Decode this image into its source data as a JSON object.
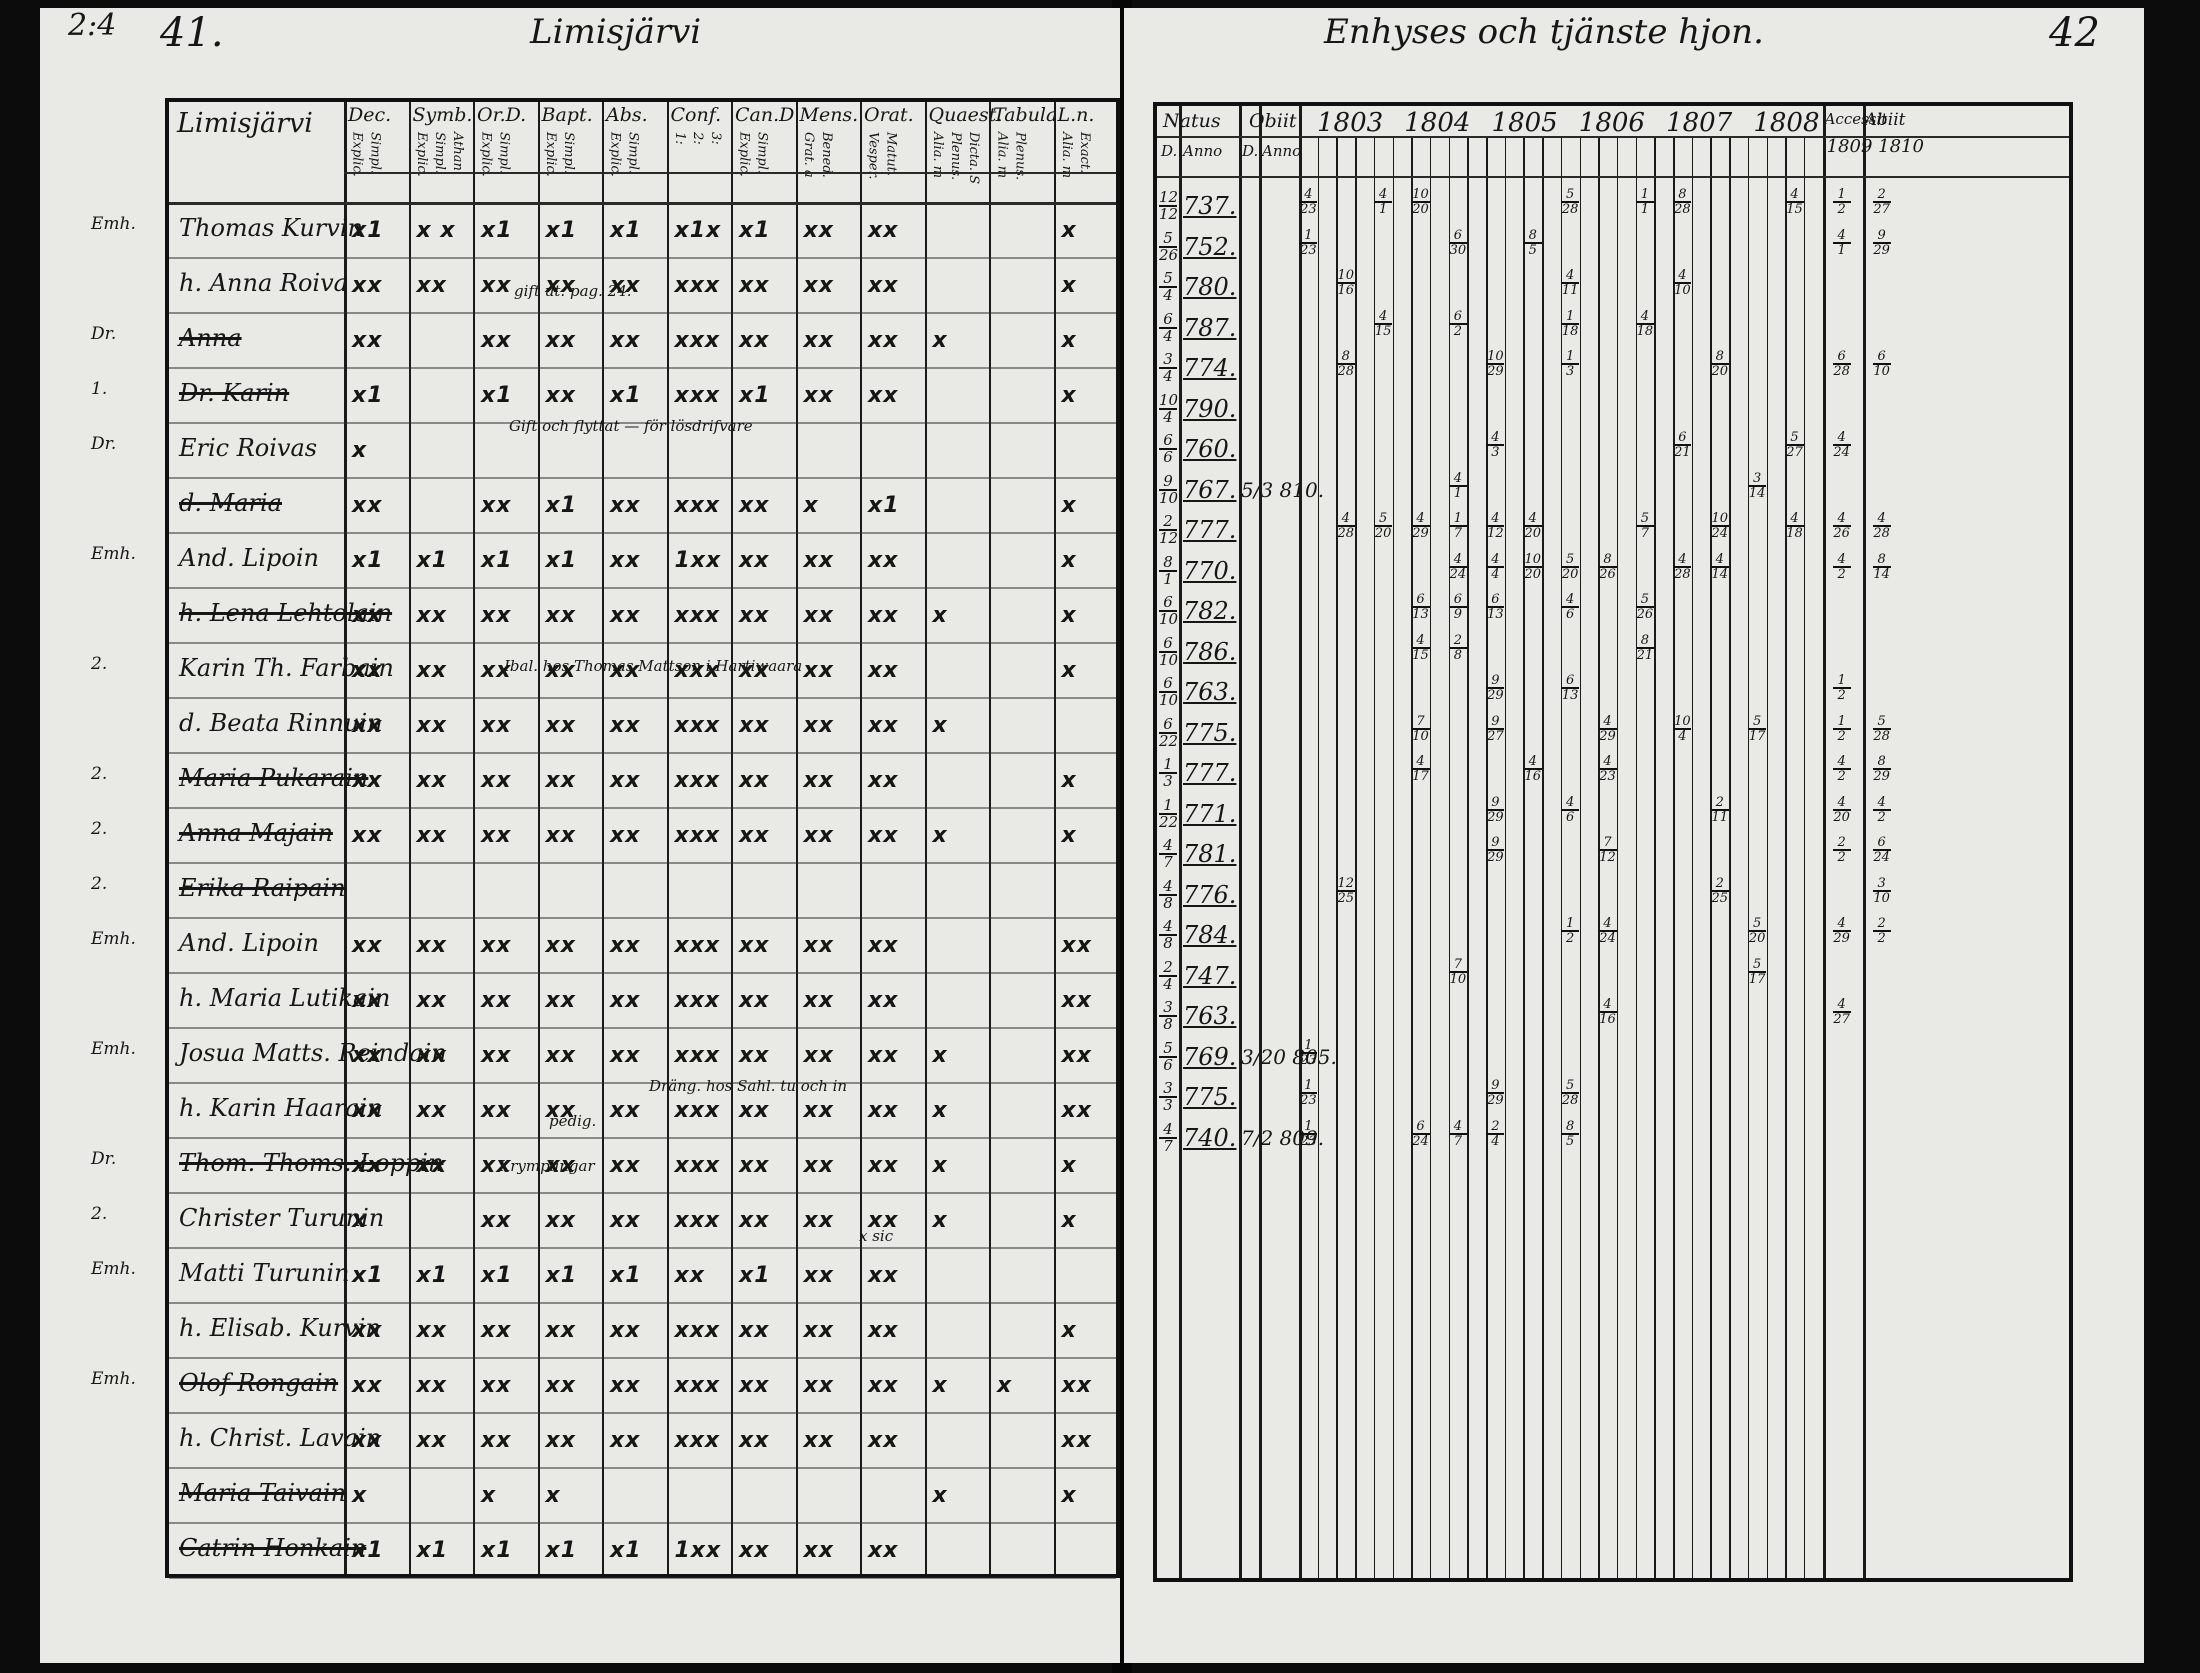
{
  "left_page": {
    "page_number": "41.",
    "corner_number": "2:4",
    "running_title": "Limisjärvi",
    "table_title": "Limisjärvi",
    "header_columns": [
      {
        "label": "Dec.",
        "sub": [
          "Explic.",
          "Simpl."
        ]
      },
      {
        "label": "Symb.",
        "sub": [
          "Explic.",
          "Simpl.",
          "Athan."
        ]
      },
      {
        "label": "Or.D.",
        "sub": [
          "Explic.",
          "Simpl."
        ]
      },
      {
        "label": "Bapt.",
        "sub": [
          "Explic.",
          "Simpl."
        ]
      },
      {
        "label": "Abs.",
        "sub": [
          "Explic.",
          "Simpl."
        ]
      },
      {
        "label": "Conf.",
        "sub": [
          "1:",
          "2:",
          "3:"
        ]
      },
      {
        "label": "Can.D",
        "sub": [
          "Explic.",
          "Simpl."
        ]
      },
      {
        "label": "Mens.",
        "sub": [
          "Grat. a",
          "Bened."
        ]
      },
      {
        "label": "Orat.",
        "sub": [
          "Vesper.",
          "Matut."
        ]
      },
      {
        "label": "Quaest.",
        "sub": [
          "Alia. m",
          "Plenus.",
          "Dicta. S"
        ]
      },
      {
        "label": "Tabula",
        "sub": [
          "Alia. m",
          "Plenus."
        ]
      },
      {
        "label": "L.n.",
        "sub": [
          "Alia. m",
          "Exact."
        ]
      }
    ],
    "rows": [
      {
        "margin": "Emh.",
        "name": "Thomas Kurvin",
        "struck": false,
        "marks": [
          "x1",
          "x x",
          "x1",
          "x1",
          "x1",
          "x1x",
          "x1",
          "xx",
          "xx",
          "",
          "",
          "x"
        ]
      },
      {
        "margin": "",
        "name": "h. Anna Roiva",
        "struck": false,
        "marks": [
          "xx",
          "xx",
          "xx",
          "xx",
          "xx",
          "xxx",
          "xx",
          "xx",
          "xx",
          "",
          "",
          "x"
        ]
      },
      {
        "margin": "Dr.",
        "name": "Anna",
        "struck": true,
        "marks": [
          "xx",
          "",
          "xx",
          "xx",
          "xx",
          "xxx",
          "xx",
          "xx",
          "xx",
          "x",
          "",
          "x"
        ]
      },
      {
        "margin": "1.",
        "name": "Dr. Karin",
        "struck": true,
        "marks": [
          "x1",
          "",
          "x1",
          "xx",
          "x1",
          "xxx",
          "x1",
          "xx",
          "xx",
          "",
          "",
          "x"
        ]
      },
      {
        "margin": "Dr.",
        "name": "Eric Roivas",
        "struck": false,
        "marks": [
          "x",
          "",
          "",
          "",
          "",
          "",
          "",
          "",
          "",
          "",
          "",
          ""
        ]
      },
      {
        "margin": "",
        "name": "d. Maria",
        "struck": true,
        "marks": [
          "xx",
          "",
          "xx",
          "x1",
          "xx",
          "xxx",
          "xx",
          "x",
          "x1",
          "",
          "",
          "x"
        ]
      },
      {
        "margin": "Emh.",
        "name": "And. Lipoin",
        "struck": false,
        "marks": [
          "x1",
          "x1",
          "x1",
          "x1",
          "xx",
          "1xx",
          "xx",
          "xx",
          "xx",
          "",
          "",
          "x"
        ]
      },
      {
        "margin": "",
        "name": "h. Lena Lehtolain",
        "struck": true,
        "marks": [
          "xx",
          "xx",
          "xx",
          "xx",
          "xx",
          "xxx",
          "xx",
          "xx",
          "xx",
          "x",
          "",
          "x"
        ]
      },
      {
        "margin": "2.",
        "name": "Karin Th. Farbain",
        "struck": false,
        "marks": [
          "xx",
          "xx",
          "xx",
          "xx",
          "xx",
          "xxx",
          "xx",
          "xx",
          "xx",
          "",
          "",
          "x"
        ]
      },
      {
        "margin": "",
        "name": "d. Beata Rinnuin",
        "struck": false,
        "marks": [
          "xx",
          "xx",
          "xx",
          "xx",
          "xx",
          "xxx",
          "xx",
          "xx",
          "xx",
          "x",
          "",
          ""
        ]
      },
      {
        "margin": "2.",
        "name": "Maria Pukarain",
        "struck": true,
        "marks": [
          "xx",
          "xx",
          "xx",
          "xx",
          "xx",
          "xxx",
          "xx",
          "xx",
          "xx",
          "",
          "",
          "x"
        ]
      },
      {
        "margin": "2.",
        "name": "Anna Majain",
        "struck": true,
        "marks": [
          "xx",
          "xx",
          "xx",
          "xx",
          "xx",
          "xxx",
          "xx",
          "xx",
          "xx",
          "x",
          "",
          "x"
        ]
      },
      {
        "margin": "2.",
        "name": "Erika Raipain",
        "struck": true,
        "marks": [
          "",
          "",
          "",
          "",
          "",
          "",
          "",
          "",
          "",
          "",
          "",
          ""
        ]
      },
      {
        "margin": "Emh.",
        "name": "And. Lipoin",
        "struck": false,
        "marks": [
          "xx",
          "xx",
          "xx",
          "xx",
          "xx",
          "xxx",
          "xx",
          "xx",
          "xx",
          "",
          "",
          "xx"
        ]
      },
      {
        "margin": "",
        "name": "h. Maria Lutikain",
        "struck": false,
        "marks": [
          "xx",
          "xx",
          "xx",
          "xx",
          "xx",
          "xxx",
          "xx",
          "xx",
          "xx",
          "",
          "",
          "xx"
        ]
      },
      {
        "margin": "Emh.",
        "name": "Josua Matts. Reindain",
        "struck": false,
        "marks": [
          "xx",
          "xx",
          "xx",
          "xx",
          "xx",
          "xxx",
          "xx",
          "xx",
          "xx",
          "x",
          "",
          "xx"
        ]
      },
      {
        "margin": "",
        "name": "h. Karin Haarain",
        "struck": false,
        "marks": [
          "xx",
          "xx",
          "xx",
          "xx",
          "xx",
          "xxx",
          "xx",
          "xx",
          "xx",
          "x",
          "",
          "xx"
        ]
      },
      {
        "margin": "Dr.",
        "name": "Thom. Thoms. Loppin",
        "struck": true,
        "marks": [
          "xx",
          "xx",
          "xx",
          "xx",
          "xx",
          "xxx",
          "xx",
          "xx",
          "xx",
          "x",
          "",
          "x"
        ]
      },
      {
        "margin": "2.",
        "name": "Christer Turunin",
        "struck": false,
        "marks": [
          "x",
          "",
          "xx",
          "xx",
          "xx",
          "xxx",
          "xx",
          "xx",
          "xx",
          "x",
          "",
          "x"
        ]
      },
      {
        "margin": "Emh.",
        "name": "Matti Turunin",
        "struck": false,
        "marks": [
          "x1",
          "x1",
          "x1",
          "x1",
          "x1",
          "xx",
          "x1",
          "xx",
          "xx",
          "",
          "",
          ""
        ]
      },
      {
        "margin": "",
        "name": "h. Elisab. Kurvin",
        "struck": false,
        "marks": [
          "xx",
          "xx",
          "xx",
          "xx",
          "xx",
          "xxx",
          "xx",
          "xx",
          "xx",
          "",
          "",
          "x"
        ]
      },
      {
        "margin": "Emh.",
        "name": "Olof Rongain",
        "struck": true,
        "marks": [
          "xx",
          "xx",
          "xx",
          "xx",
          "xx",
          "xxx",
          "xx",
          "xx",
          "xx",
          "x",
          "x",
          "xx"
        ]
      },
      {
        "margin": "",
        "name": "h. Christ. Lavain",
        "struck": false,
        "marks": [
          "xx",
          "xx",
          "xx",
          "xx",
          "xx",
          "xxx",
          "xx",
          "xx",
          "xx",
          "",
          "",
          "xx"
        ]
      },
      {
        "margin": "",
        "name": "Maria Taivain",
        "struck": true,
        "marks": [
          "x",
          "",
          "x",
          "x",
          "",
          "",
          "",
          "",
          "",
          "x",
          "",
          "x"
        ]
      },
      {
        "margin": "",
        "name": "Catrin Honkain",
        "struck": true,
        "marks": [
          "x1",
          "x1",
          "x1",
          "x1",
          "x1",
          "1xx",
          "xx",
          "xx",
          "xx",
          "",
          "",
          ""
        ]
      }
    ],
    "notes": [
      "gift ut. pag. 24.",
      "Gift och flyttat — för lösdrifvare",
      "Ibal. hos Thomas Mattson i Hartiwaara",
      "Dräng. hos Sahl. tu och in",
      "pedig.",
      "Krymplingar",
      "x sic"
    ]
  },
  "right_page": {
    "page_number": "42",
    "running_title": "Enhyses och tjänste hjon.",
    "header": {
      "natus": "Natus",
      "obiit": "Obiit",
      "d": "D.",
      "anno": "Anno",
      "years": [
        "1803",
        "1804",
        "1805",
        "1806",
        "1807",
        "1808"
      ],
      "accessit": "Accessit",
      "abiit": "Abiit",
      "year_note": "1809 1810"
    },
    "birth_rows": [
      {
        "day": "12/12",
        "year": "737.",
        "death": ""
      },
      {
        "day": "5/26",
        "year": "752.",
        "death": ""
      },
      {
        "day": "5/4",
        "year": "780.",
        "death": ""
      },
      {
        "day": "6/4",
        "year": "787.",
        "death": ""
      },
      {
        "day": "3/4",
        "year": "774.",
        "death": ""
      },
      {
        "day": "10/4",
        "year": "790.",
        "death": ""
      },
      {
        "day": "6/6",
        "year": "760.",
        "death": ""
      },
      {
        "day": "9/10",
        "year": "767.",
        "death": "5/3 810."
      },
      {
        "day": "2/12",
        "year": "777.",
        "death": ""
      },
      {
        "day": "8/1",
        "year": "770.",
        "death": ""
      },
      {
        "day": "6/10",
        "year": "782.",
        "death": ""
      },
      {
        "day": "6/10",
        "year": "786.",
        "death": ""
      },
      {
        "day": "6/10",
        "year": "763.",
        "death": ""
      },
      {
        "day": "6/22",
        "year": "775.",
        "death": ""
      },
      {
        "day": "1/3",
        "year": "777.",
        "death": ""
      },
      {
        "day": "1/22",
        "year": "771.",
        "death": ""
      },
      {
        "day": "4/7",
        "year": "781.",
        "death": ""
      },
      {
        "day": "4/8",
        "year": "776.",
        "death": ""
      },
      {
        "day": "4/8",
        "year": "784.",
        "death": ""
      },
      {
        "day": "2/4",
        "year": "747.",
        "death": ""
      },
      {
        "day": "3/8",
        "year": "763.",
        "death": ""
      },
      {
        "day": "5/6",
        "year": "769.",
        "death": "3/20 805."
      },
      {
        "day": "3/3",
        "year": "775.",
        "death": ""
      },
      {
        "day": "4/7",
        "year": "740.",
        "death": "7/2 809."
      }
    ],
    "year_entries": [
      {
        "col": 0,
        "row": 0,
        "v": "4/23"
      },
      {
        "col": 0,
        "row": 1,
        "v": "1/23"
      },
      {
        "col": 0,
        "row": 21,
        "v": "1/23"
      },
      {
        "col": 0,
        "row": 22,
        "v": "1/23"
      },
      {
        "col": 0,
        "row": 23,
        "v": "1/23"
      },
      {
        "col": 1,
        "row": 2,
        "v": "10/16"
      },
      {
        "col": 1,
        "row": 4,
        "v": "8/28"
      },
      {
        "col": 1,
        "row": 8,
        "v": "4/28"
      },
      {
        "col": 1,
        "row": 17,
        "v": "12/25"
      },
      {
        "col": 2,
        "row": 0,
        "v": "4/1"
      },
      {
        "col": 2,
        "row": 3,
        "v": "4/15"
      },
      {
        "col": 2,
        "row": 8,
        "v": "5/20"
      },
      {
        "col": 3,
        "row": 0,
        "v": "10/20"
      },
      {
        "col": 3,
        "row": 8,
        "v": "4/29"
      },
      {
        "col": 3,
        "row": 10,
        "v": "6/13"
      },
      {
        "col": 3,
        "row": 11,
        "v": "4/15"
      },
      {
        "col": 3,
        "row": 13,
        "v": "7/10"
      },
      {
        "col": 3,
        "row": 14,
        "v": "4/17"
      },
      {
        "col": 3,
        "row": 23,
        "v": "6/24"
      },
      {
        "col": 4,
        "row": 1,
        "v": "6/30"
      },
      {
        "col": 4,
        "row": 3,
        "v": "6/2"
      },
      {
        "col": 4,
        "row": 7,
        "v": "4/1"
      },
      {
        "col": 4,
        "row": 8,
        "v": "1/7"
      },
      {
        "col": 4,
        "row": 9,
        "v": "4/24"
      },
      {
        "col": 4,
        "row": 10,
        "v": "6/9"
      },
      {
        "col": 4,
        "row": 11,
        "v": "2/8"
      },
      {
        "col": 4,
        "row": 19,
        "v": "7/10"
      },
      {
        "col": 4,
        "row": 23,
        "v": "4/7"
      },
      {
        "col": 5,
        "row": 4,
        "v": "10/29"
      },
      {
        "col": 5,
        "row": 6,
        "v": "4/3"
      },
      {
        "col": 5,
        "row": 8,
        "v": "4/12"
      },
      {
        "col": 5,
        "row": 9,
        "v": "4/4"
      },
      {
        "col": 5,
        "row": 10,
        "v": "6/13"
      },
      {
        "col": 5,
        "row": 12,
        "v": "9/29"
      },
      {
        "col": 5,
        "row": 13,
        "v": "9/27"
      },
      {
        "col": 5,
        "row": 15,
        "v": "9/29"
      },
      {
        "col": 5,
        "row": 16,
        "v": "9/29"
      },
      {
        "col": 5,
        "row": 22,
        "v": "9/29"
      },
      {
        "col": 5,
        "row": 23,
        "v": "2/4"
      },
      {
        "col": 6,
        "row": 1,
        "v": "8/5"
      },
      {
        "col": 6,
        "row": 8,
        "v": "4/20"
      },
      {
        "col": 6,
        "row": 9,
        "v": "10/20"
      },
      {
        "col": 6,
        "row": 14,
        "v": "4/16"
      },
      {
        "col": 7,
        "row": 0,
        "v": "5/28"
      },
      {
        "col": 7,
        "row": 2,
        "v": "4/11"
      },
      {
        "col": 7,
        "row": 3,
        "v": "1/18"
      },
      {
        "col": 7,
        "row": 4,
        "v": "1/3"
      },
      {
        "col": 7,
        "row": 9,
        "v": "5/20"
      },
      {
        "col": 7,
        "row": 10,
        "v": "4/6"
      },
      {
        "col": 7,
        "row": 12,
        "v": "6/13"
      },
      {
        "col": 7,
        "row": 15,
        "v": "4/6"
      },
      {
        "col": 7,
        "row": 18,
        "v": "1/2"
      },
      {
        "col": 7,
        "row": 22,
        "v": "5/28"
      },
      {
        "col": 7,
        "row": 23,
        "v": "8/5"
      },
      {
        "col": 8,
        "row": 9,
        "v": "8/26"
      },
      {
        "col": 8,
        "row": 13,
        "v": "4/29"
      },
      {
        "col": 8,
        "row": 14,
        "v": "4/23"
      },
      {
        "col": 8,
        "row": 16,
        "v": "7/12"
      },
      {
        "col": 8,
        "row": 18,
        "v": "4/24"
      },
      {
        "col": 8,
        "row": 20,
        "v": "4/16"
      },
      {
        "col": 9,
        "row": 0,
        "v": "1/1"
      },
      {
        "col": 9,
        "row": 3,
        "v": "4/18"
      },
      {
        "col": 9,
        "row": 8,
        "v": "5/7"
      },
      {
        "col": 9,
        "row": 10,
        "v": "5/26"
      },
      {
        "col": 9,
        "row": 11,
        "v": "8/21"
      },
      {
        "col": 10,
        "row": 0,
        "v": "8/28"
      },
      {
        "col": 10,
        "row": 2,
        "v": "4/10"
      },
      {
        "col": 10,
        "row": 6,
        "v": "6/21"
      },
      {
        "col": 10,
        "row": 9,
        "v": "4/28"
      },
      {
        "col": 10,
        "row": 13,
        "v": "10/4"
      },
      {
        "col": 11,
        "row": 4,
        "v": "8/20"
      },
      {
        "col": 11,
        "row": 8,
        "v": "10/24"
      },
      {
        "col": 11,
        "row": 9,
        "v": "4/14"
      },
      {
        "col": 11,
        "row": 15,
        "v": "2/11"
      },
      {
        "col": 11,
        "row": 17,
        "v": "2/25"
      },
      {
        "col": 12,
        "row": 7,
        "v": "3/14"
      },
      {
        "col": 12,
        "row": 13,
        "v": "5/17"
      },
      {
        "col": 12,
        "row": 18,
        "v": "5/20"
      },
      {
        "col": 12,
        "row": 19,
        "v": "5/17"
      },
      {
        "col": 13,
        "row": 0,
        "v": "4/15"
      },
      {
        "col": 13,
        "row": 6,
        "v": "5/27"
      },
      {
        "col": 13,
        "row": 8,
        "v": "4/18"
      }
    ],
    "accessit": [
      {
        "row": 0,
        "v": "1/2"
      },
      {
        "row": 1,
        "v": "4/1"
      },
      {
        "row": 4,
        "v": "6/28"
      },
      {
        "row": 6,
        "v": "4/24"
      },
      {
        "row": 8,
        "v": "4/26"
      },
      {
        "row": 9,
        "v": "4/2"
      },
      {
        "row": 12,
        "v": "1/2"
      },
      {
        "row": 13,
        "v": "1/2"
      },
      {
        "row": 14,
        "v": "4/2"
      },
      {
        "row": 15,
        "v": "4/20"
      },
      {
        "row": 16,
        "v": "2/2"
      },
      {
        "row": 18,
        "v": "4/29"
      },
      {
        "row": 20,
        "v": "4/27"
      }
    ],
    "abiit": [
      {
        "row": 0,
        "v": "2/27"
      },
      {
        "row": 1,
        "v": "9/29"
      },
      {
        "row": 4,
        "v": "6/10"
      },
      {
        "row": 8,
        "v": "4/28"
      },
      {
        "row": 9,
        "v": "8/14"
      },
      {
        "row": 13,
        "v": "5/28"
      },
      {
        "row": 14,
        "v": "8/29"
      },
      {
        "row": 15,
        "v": "4/2"
      },
      {
        "row": 16,
        "v": "6/24"
      },
      {
        "row": 17,
        "v": "3/10"
      },
      {
        "row": 18,
        "v": "2/2"
      }
    ]
  }
}
